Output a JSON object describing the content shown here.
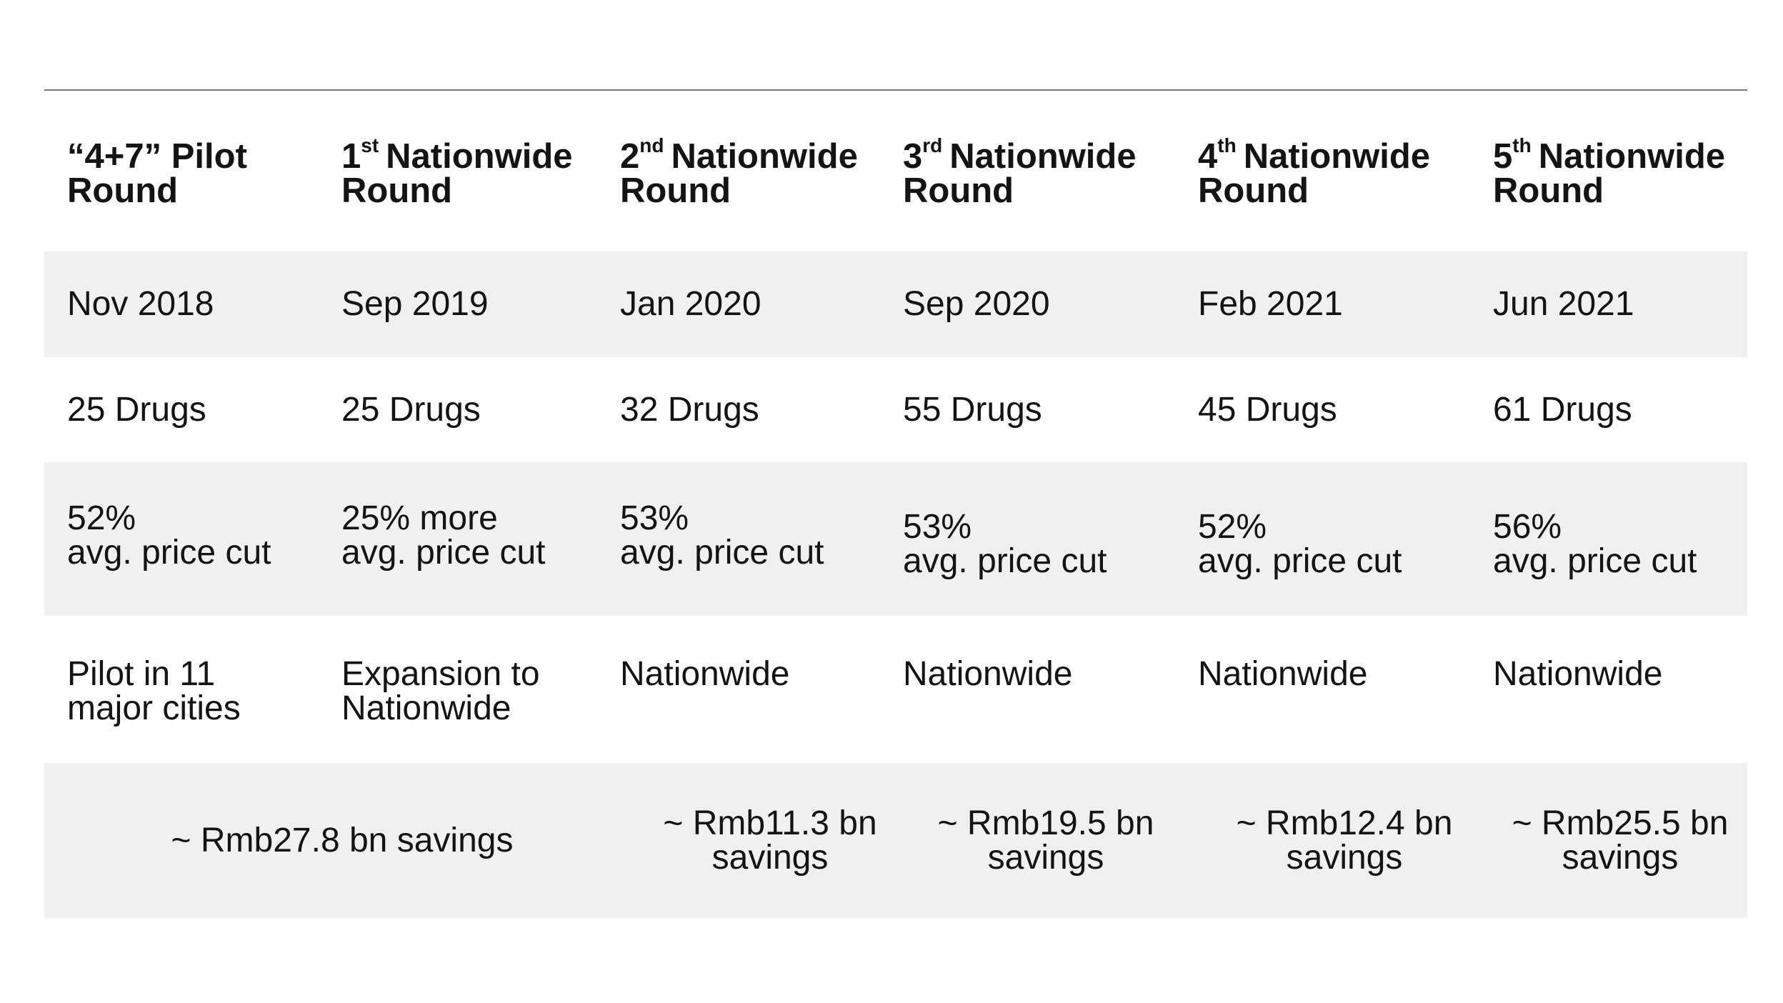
{
  "headers": [
    {
      "pre": "“4+7” Pilot",
      "sup": "",
      "post": "",
      "line2": "Round"
    },
    {
      "pre": "1",
      "sup": "st",
      "post": "Nationwide",
      "line2": "Round"
    },
    {
      "pre": "2",
      "sup": "nd",
      "post": "Nationwide",
      "line2": "Round"
    },
    {
      "pre": "3",
      "sup": "rd",
      "post": "Nationwide",
      "line2": "Round"
    },
    {
      "pre": "4",
      "sup": "th",
      "post": "Nationwide",
      "line2": "Round"
    },
    {
      "pre": "5",
      "sup": "th",
      "post": "Nationwide",
      "line2": "Round"
    }
  ],
  "dates": [
    "Nov 2018",
    "Sep 2019",
    "Jan 2020",
    "Sep 2020",
    "Feb 2021",
    "Jun 2021"
  ],
  "drugs": [
    "25 Drugs",
    "25 Drugs",
    "32 Drugs",
    "55 Drugs",
    "45 Drugs",
    "61 Drugs"
  ],
  "price_cuts": [
    {
      "line1": "52%",
      "line2": "avg. price cut"
    },
    {
      "line1": "25% more",
      "line2": "avg. price cut"
    },
    {
      "line1": "53%",
      "line2": "avg. price cut"
    },
    {
      "line1": "53%",
      "line2": "avg. price cut"
    },
    {
      "line1": "52%",
      "line2": "avg. price cut"
    },
    {
      "line1": "56%",
      "line2": "avg. price cut"
    }
  ],
  "scope": [
    {
      "line1": "Pilot in 11",
      "line2": "major cities"
    },
    {
      "line1": "Expansion to",
      "line2": "Nationwide"
    },
    {
      "line1": "Nationwide",
      "line2": ""
    },
    {
      "line1": "Nationwide",
      "line2": ""
    },
    {
      "line1": "Nationwide",
      "line2": ""
    },
    {
      "line1": "Nationwide",
      "line2": ""
    }
  ],
  "savings": {
    "combined": "~ Rmb27.8 bn savings",
    "items": [
      {
        "line1": "~ Rmb11.3 bn",
        "line2": "savings"
      },
      {
        "line1": "~ Rmb19.5 bn",
        "line2": "savings"
      },
      {
        "line1": "~ Rmb12.4 bn",
        "line2": "savings"
      },
      {
        "line1": "~ Rmb25.5 bn",
        "line2": "savings"
      }
    ]
  }
}
